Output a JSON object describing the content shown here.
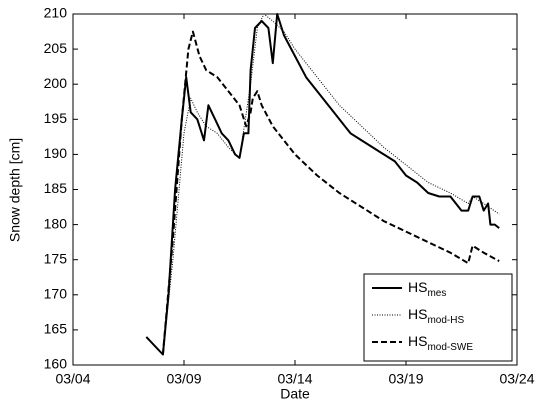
{
  "chart_data": {
    "type": "line",
    "xlabel": "Date",
    "ylabel": "Snow depth [cm]",
    "xlim": [
      4,
      24
    ],
    "xticks": [
      {
        "value": 4,
        "label": "03/04"
      },
      {
        "value": 9,
        "label": "03/09"
      },
      {
        "value": 14,
        "label": "03/14"
      },
      {
        "value": 19,
        "label": "03/19"
      },
      {
        "value": 24,
        "label": "03/24"
      }
    ],
    "ylim": [
      160,
      210
    ],
    "yticks": [
      160,
      165,
      170,
      175,
      180,
      185,
      190,
      195,
      200,
      205,
      210
    ],
    "grid": false,
    "legend": "lower right",
    "series": [
      {
        "name": "HS",
        "name_sub": "mes",
        "color": "#000000",
        "line_style": "solid",
        "x": [
          7.3,
          8.05,
          8.3,
          8.6,
          8.9,
          9.1,
          9.3,
          9.6,
          9.9,
          10.1,
          10.4,
          10.7,
          11.0,
          11.3,
          11.5,
          11.7,
          11.9,
          12.0,
          12.2,
          12.5,
          12.8,
          13.0,
          13.2,
          13.5,
          14,
          14.5,
          15,
          15.5,
          16,
          16.5,
          17,
          17.5,
          18,
          18.5,
          19,
          19.5,
          20,
          20.5,
          21,
          21.5,
          21.8,
          22,
          22.3,
          22.5,
          22.7,
          22.8,
          23,
          23.2
        ],
        "values": [
          164,
          161.5,
          170,
          185,
          195,
          201,
          196,
          195,
          192,
          197,
          195,
          193,
          192,
          190,
          189.5,
          193,
          193,
          202,
          208,
          209,
          208,
          203,
          210,
          207,
          204,
          201,
          199,
          197,
          195,
          193,
          192,
          191,
          190,
          189,
          187,
          186,
          184.5,
          184,
          184,
          182,
          182,
          184,
          184,
          182,
          183,
          180,
          180,
          179.5
        ]
      },
      {
        "name": "HS",
        "name_sub": "mod-HS",
        "color": "#000000",
        "line_style": "dotted",
        "x": [
          8.05,
          8.5,
          9.0,
          9.3,
          9.6,
          10.0,
          10.5,
          11.0,
          11.5,
          12.0,
          12.3,
          12.6,
          13,
          13.5,
          14,
          15,
          16,
          17,
          18,
          19,
          20,
          21,
          21.8,
          22,
          22.5,
          23.2
        ],
        "values": [
          161.5,
          175,
          193,
          198,
          196,
          194,
          193,
          191,
          189.5,
          200,
          208,
          210,
          209,
          207.5,
          205,
          201,
          197,
          194,
          191,
          188.5,
          186,
          184.5,
          183,
          184,
          183,
          181.5
        ]
      },
      {
        "name": "HS",
        "name_sub": "mod-SWE",
        "color": "#000000",
        "line_style": "dashed",
        "x": [
          8.05,
          8.5,
          8.9,
          9.2,
          9.4,
          9.7,
          10,
          10.5,
          11,
          11.5,
          11.8,
          12.0,
          12.1,
          12.3,
          12.5,
          13,
          14,
          15,
          16,
          17,
          18,
          19,
          20,
          21,
          21.8,
          22,
          22.5,
          23.2
        ],
        "values": [
          161.5,
          178,
          195,
          205,
          207.5,
          204,
          202,
          201,
          199,
          197,
          194,
          196,
          198,
          199,
          197,
          194,
          190,
          187,
          184.5,
          182.5,
          180.5,
          179,
          177.5,
          176,
          174.5,
          177,
          176,
          174.8
        ]
      }
    ]
  }
}
